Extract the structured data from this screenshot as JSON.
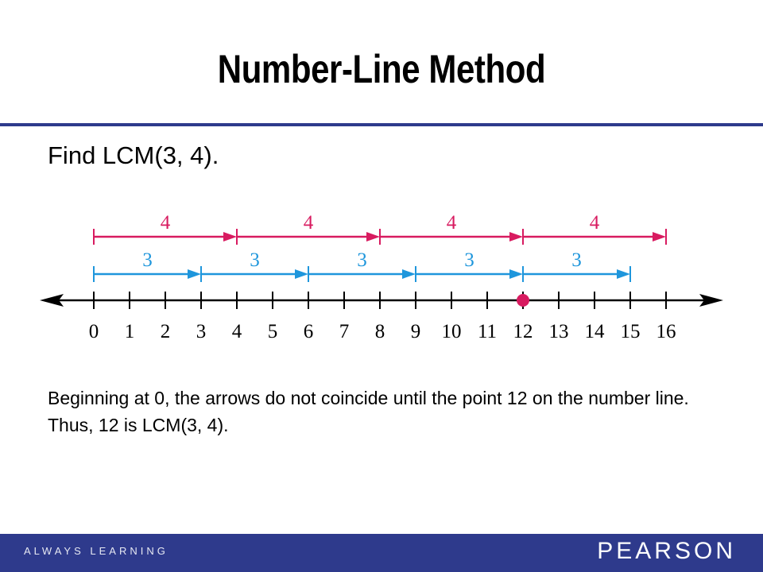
{
  "title": "Number-Line Method",
  "prompt": "Find LCM(3, 4).",
  "colors": {
    "accent": "#2e3a8c",
    "step4": "#d81b60",
    "step3": "#1e96dc",
    "point": "#d81b60"
  },
  "diagram": {
    "ticks": [
      "0",
      "1",
      "2",
      "3",
      "4",
      "5",
      "6",
      "7",
      "8",
      "9",
      "10",
      "11",
      "12",
      "13",
      "14",
      "15",
      "16"
    ],
    "highlight": 12,
    "rows": [
      {
        "step": 4,
        "label": "4",
        "count": 4,
        "color": "#d81b60"
      },
      {
        "step": 3,
        "label": "3",
        "count": 5,
        "color": "#1e96dc"
      }
    ]
  },
  "explanation": "Beginning at 0, the arrows do not coincide until the point 12 on the number line. Thus, 12 is LCM(3, 4).",
  "footer": {
    "tagline": "ALWAYS LEARNING",
    "brand": "PEARSON"
  }
}
